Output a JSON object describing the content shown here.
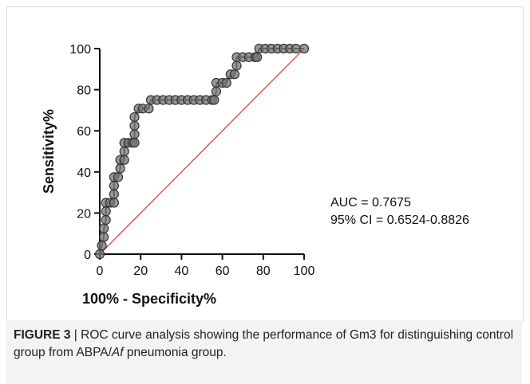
{
  "chart_data": {
    "type": "line",
    "xlabel": "100% - Specificity%",
    "ylabel": "Sensitivity%",
    "xlim": [
      0,
      100
    ],
    "ylim": [
      0,
      100
    ],
    "xticks": [
      0,
      20,
      40,
      60,
      80,
      100
    ],
    "yticks": [
      0,
      20,
      40,
      60,
      80,
      100
    ],
    "grid": false,
    "annotations": [
      "AUC = 0.7675",
      "95% CI = 0.6524-0.8826"
    ],
    "series": [
      {
        "color": "#333333",
        "x": [
          0,
          1,
          2,
          2,
          3,
          3,
          3,
          5,
          7,
          7,
          7,
          7,
          9,
          10,
          10,
          12,
          12,
          12,
          14,
          16,
          17,
          17,
          17,
          17,
          19,
          21,
          24,
          25,
          28,
          31,
          34,
          37,
          40,
          43,
          46,
          49,
          52,
          55,
          56,
          57,
          57,
          60,
          62,
          64,
          66,
          67,
          67,
          70,
          73,
          76,
          77,
          78,
          81,
          84,
          87,
          90,
          93,
          96,
          100
        ],
        "values": [
          0,
          4.17,
          8.33,
          12.5,
          16.67,
          20.83,
          25,
          25,
          25,
          29.17,
          33.33,
          37.5,
          37.5,
          41.67,
          45.83,
          45.83,
          50,
          54.17,
          54.17,
          54.17,
          54.17,
          58.33,
          62.5,
          66.67,
          70.83,
          70.83,
          70.83,
          75,
          75,
          75,
          75,
          75,
          75,
          75,
          75,
          75,
          75,
          75,
          75,
          79.17,
          83.33,
          83.33,
          83.33,
          87.5,
          87.5,
          91.67,
          95.83,
          95.83,
          95.83,
          95.83,
          95.83,
          100,
          100,
          100,
          100,
          100,
          100,
          100,
          100
        ]
      }
    ],
    "reference_line": {
      "color": "#e8302a",
      "x": [
        0,
        100
      ],
      "values": [
        0,
        100
      ]
    }
  },
  "caption": {
    "label": "FIGURE 3",
    "text_before": " | ROC curve analysis showing the performance of Gm3 for distinguishing control group from ABPA/",
    "italic": "Af",
    "text_after": " pneumonia group."
  }
}
